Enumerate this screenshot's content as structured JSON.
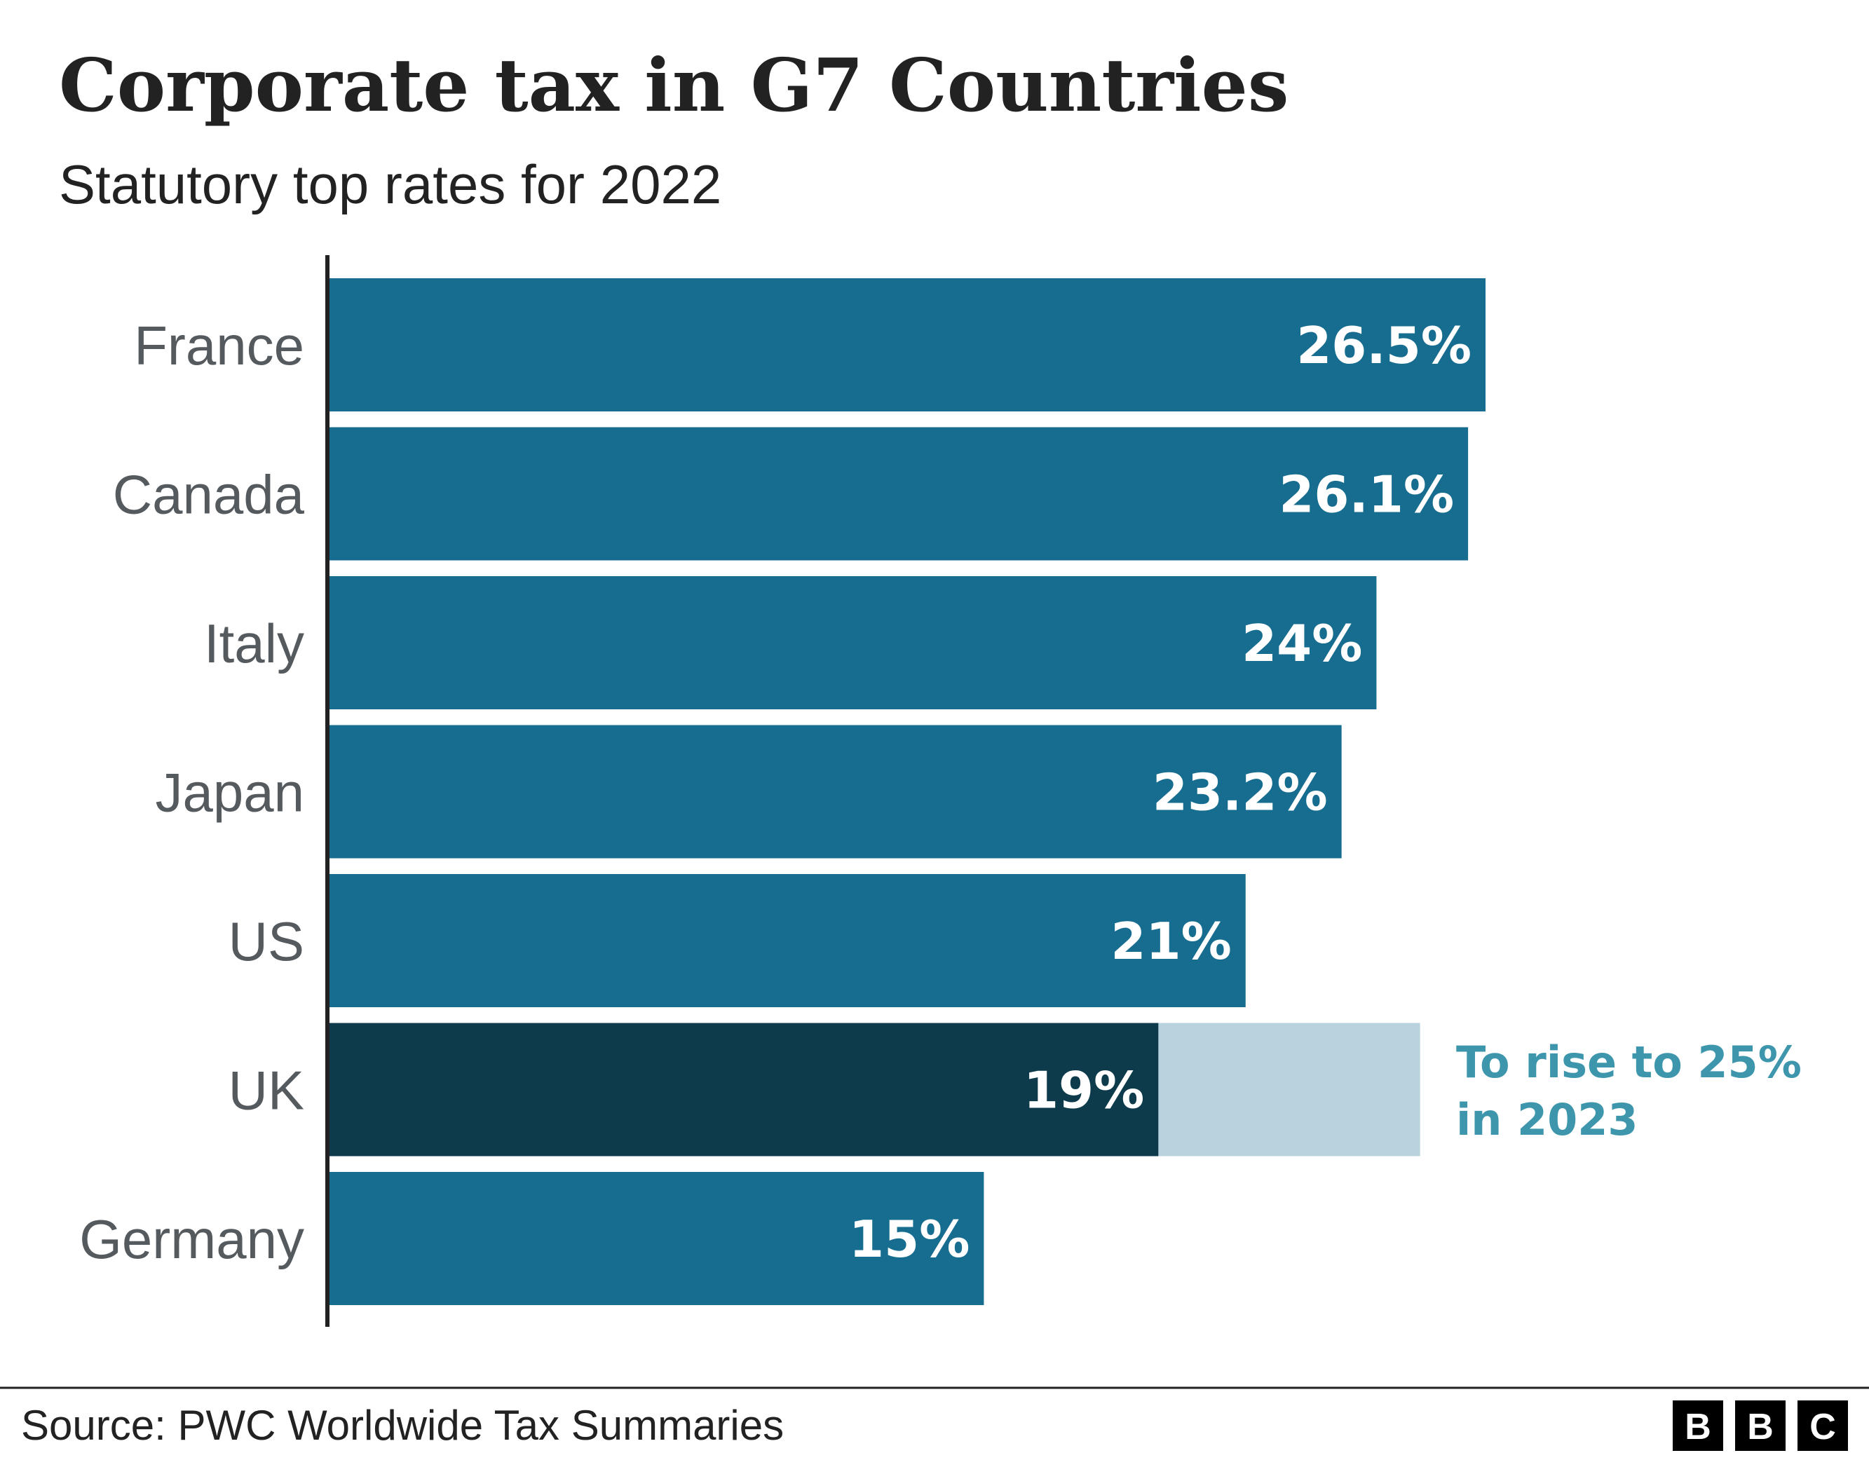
{
  "chart_data": {
    "type": "bar",
    "orientation": "horizontal",
    "title": "Corporate tax in G7 Countries",
    "subtitle": "Statutory top rates for 2022",
    "categories": [
      "France",
      "Canada",
      "Italy",
      "Japan",
      "US",
      "UK",
      "Germany"
    ],
    "values": [
      26.5,
      26.1,
      24,
      23.2,
      21,
      19,
      15
    ],
    "value_labels": [
      "26.5%",
      "26.1%",
      "24%",
      "23.2%",
      "21%",
      "19%",
      "15%"
    ],
    "unit": "%",
    "xlim": [
      0,
      26.5
    ],
    "grid": false,
    "highlight": {
      "category": "UK",
      "current_value": 19,
      "future_value": 25,
      "annotation_line1": "To rise to 25%",
      "annotation_line2": "in 2023"
    },
    "colors": {
      "bar": "#176d8f",
      "highlight_bar": "#0e3b4b",
      "future_bar": "#b9d3de",
      "annotation": "#3e96ad",
      "axis": "#222222"
    }
  },
  "footer": {
    "source": "Source: PWC Worldwide Tax Summaries",
    "logo_letters": [
      "B",
      "B",
      "C"
    ]
  }
}
